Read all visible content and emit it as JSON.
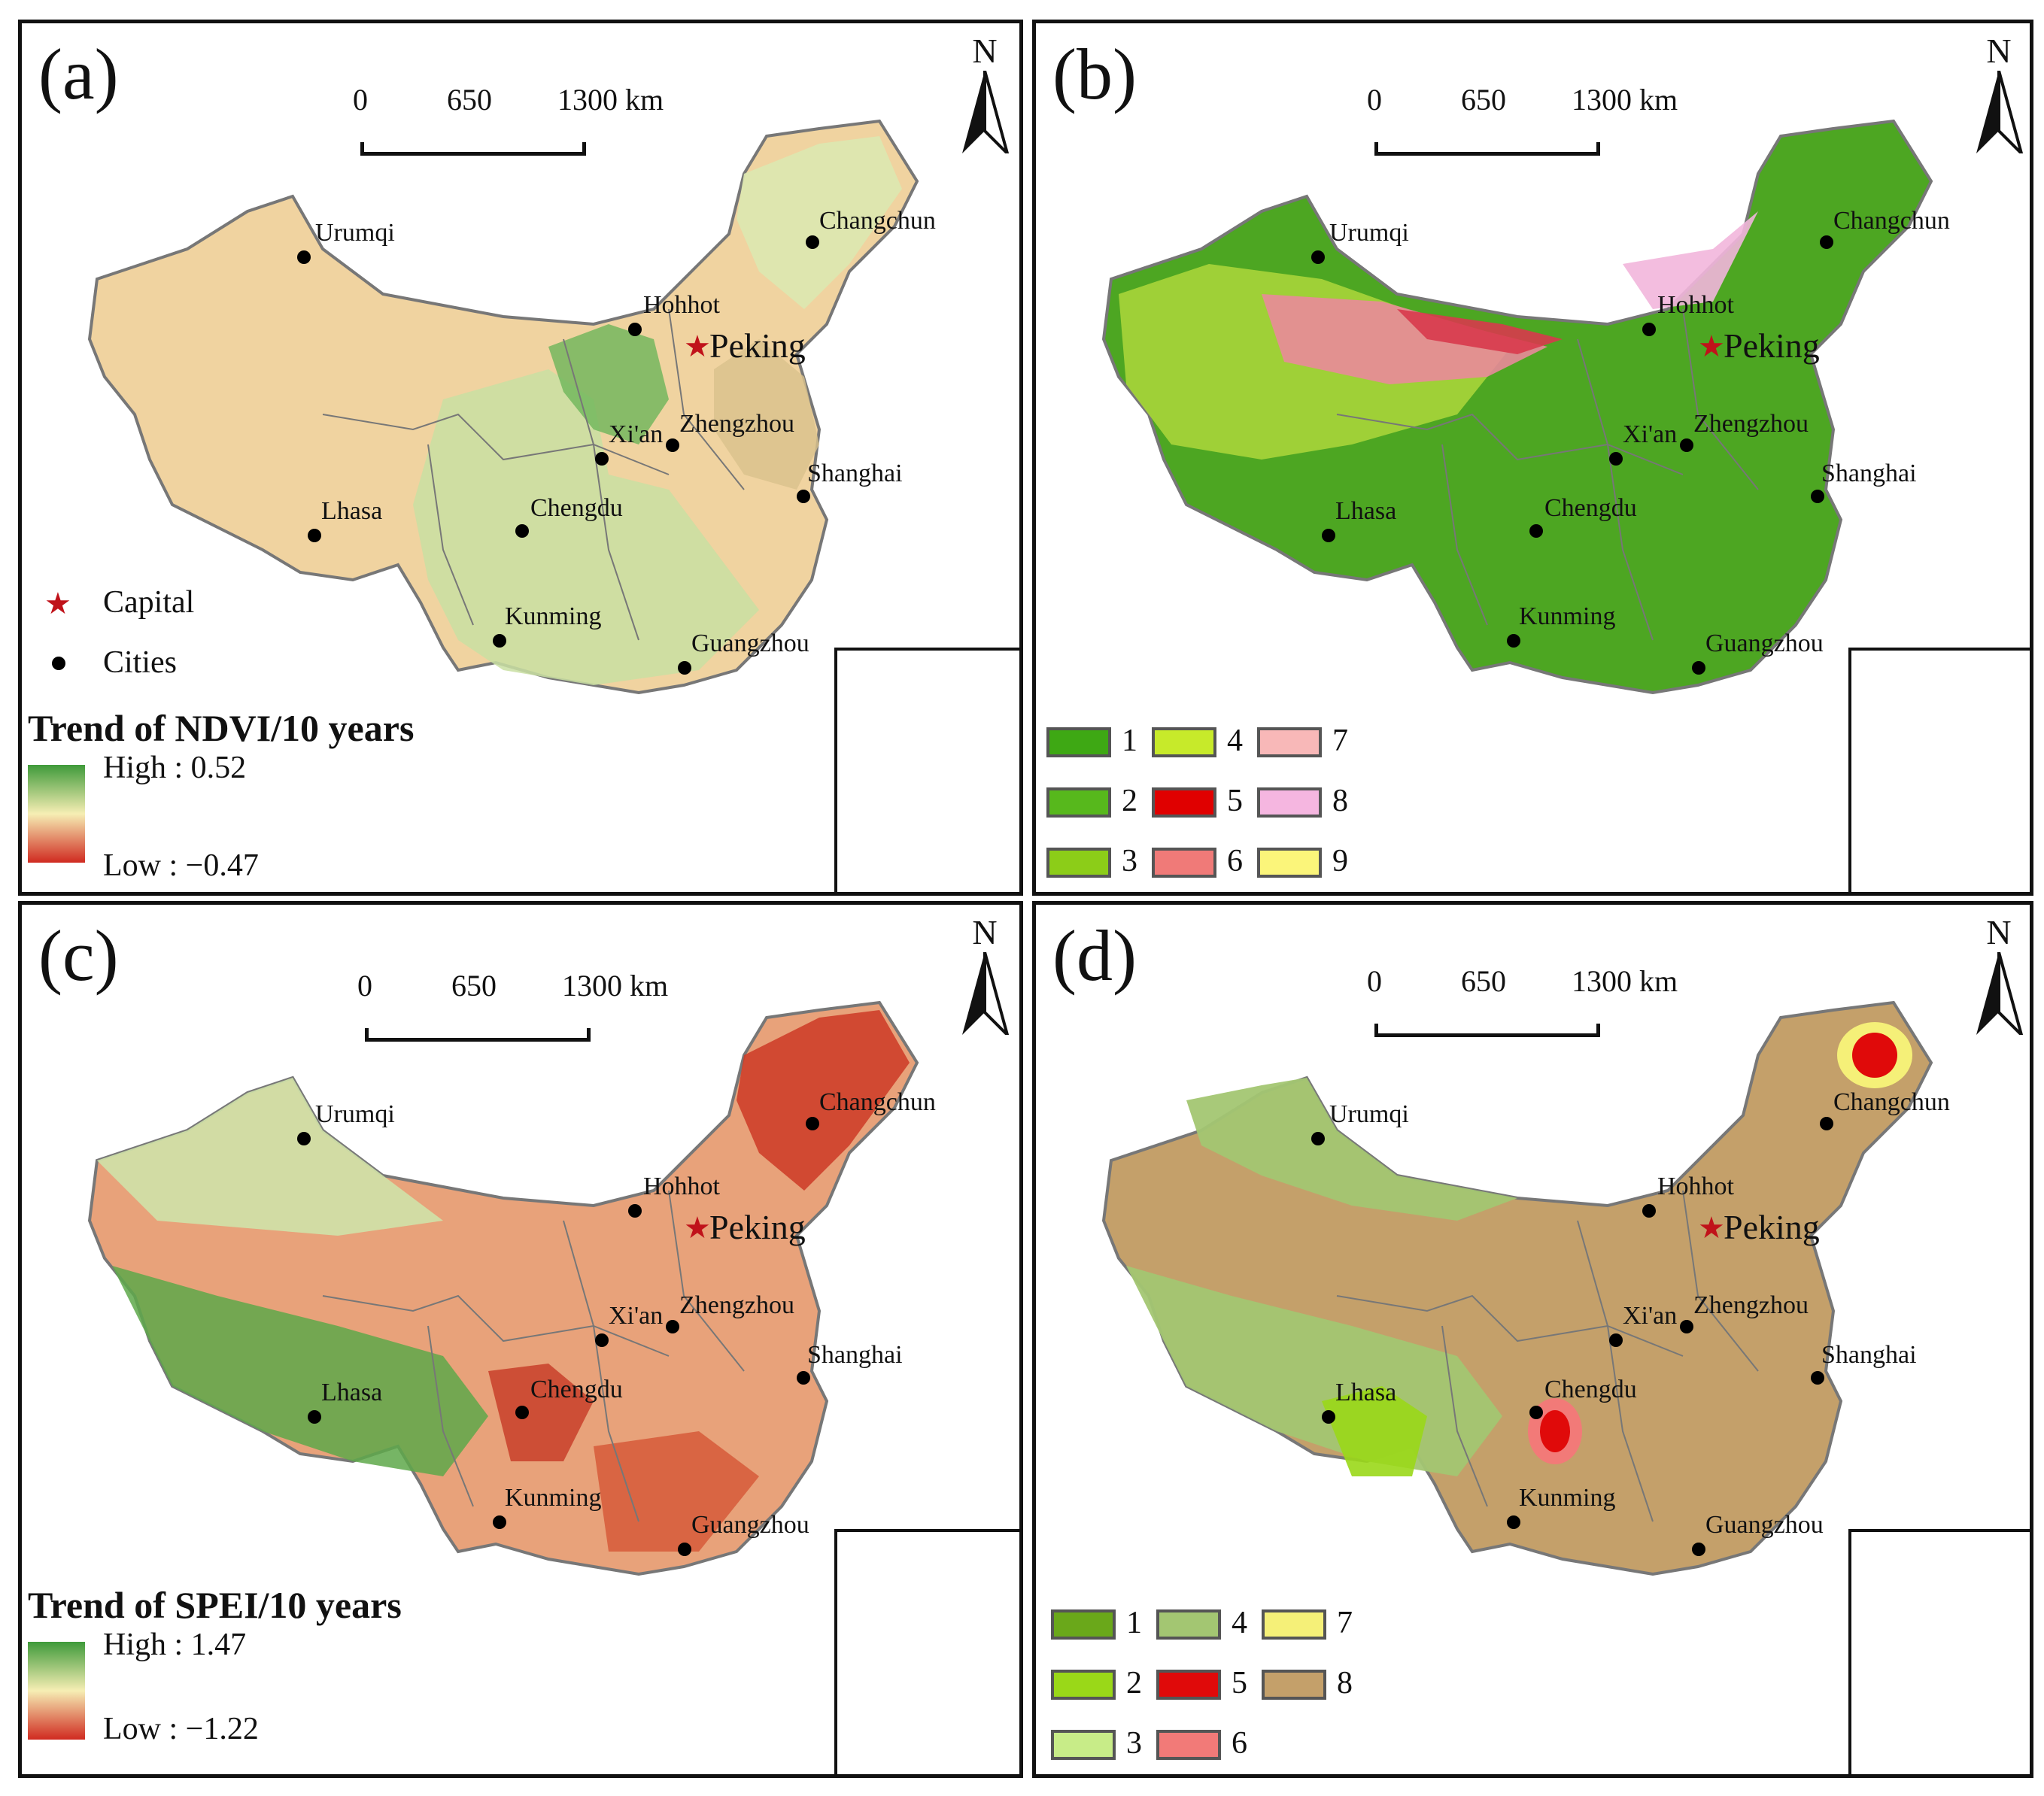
{
  "panels": [
    {
      "label": "(a)",
      "bg": "#f3d9a4",
      "accent": "#a8cf80"
    },
    {
      "label": "(b)",
      "bg": "#52a82a",
      "accent": "#c7e65a"
    },
    {
      "label": "(c)",
      "bg": "#e89a70",
      "accent": "#9bd08a"
    },
    {
      "label": "(d)",
      "bg": "#c4a16a",
      "accent": "#9cc46a"
    }
  ],
  "scale": {
    "t0": "0",
    "t1": "650",
    "t2": "1300 km"
  },
  "north": "N",
  "cities": {
    "urumqi": "Urumqi",
    "hohhot": "Hohhot",
    "changchun": "Changchun",
    "peking": "Peking",
    "xian": "Xi'an",
    "zhengzhou": "Zhengzhou",
    "shanghai": "Shanghai",
    "lhasa": "Lhasa",
    "chengdu": "Chengdu",
    "kunming": "Kunming",
    "guangzhou": "Guangzhou"
  },
  "legend_points": {
    "capital": "Capital",
    "cities": "Cities"
  },
  "ndvi_legend": {
    "title": "Trend of NDVI/10 years",
    "high": "High : 0.52",
    "low": "Low : −0.47",
    "colors": [
      "#3f9a3a",
      "#f6eeb4",
      "#d02a20"
    ]
  },
  "spei_legend": {
    "title": "Trend of SPEI/10 years",
    "high": "High : 1.47",
    "low": "Low : −1.22",
    "colors": [
      "#3f9a3a",
      "#f6eeb4",
      "#d02a20"
    ]
  },
  "classes_b": [
    {
      "label": "1",
      "color": "#3ea814"
    },
    {
      "label": "2",
      "color": "#57b81c"
    },
    {
      "label": "3",
      "color": "#8ccd18"
    },
    {
      "label": "4",
      "color": "#c7ea2a"
    },
    {
      "label": "5",
      "color": "#e00000"
    },
    {
      "label": "6",
      "color": "#f07a78"
    },
    {
      "label": "7",
      "color": "#f8b8b8"
    },
    {
      "label": "8",
      "color": "#f5b6e0"
    },
    {
      "label": "9",
      "color": "#fbf57a"
    }
  ],
  "classes_d": [
    {
      "label": "1",
      "color": "#6aa81a"
    },
    {
      "label": "2",
      "color": "#9ad818"
    },
    {
      "label": "3",
      "color": "#c8ec88"
    },
    {
      "label": "4",
      "color": "#a3c672"
    },
    {
      "label": "5",
      "color": "#e00a0a"
    },
    {
      "label": "6",
      "color": "#f27a78"
    },
    {
      "label": "7",
      "color": "#f5f078"
    },
    {
      "label": "8",
      "color": "#c4a06a"
    }
  ]
}
